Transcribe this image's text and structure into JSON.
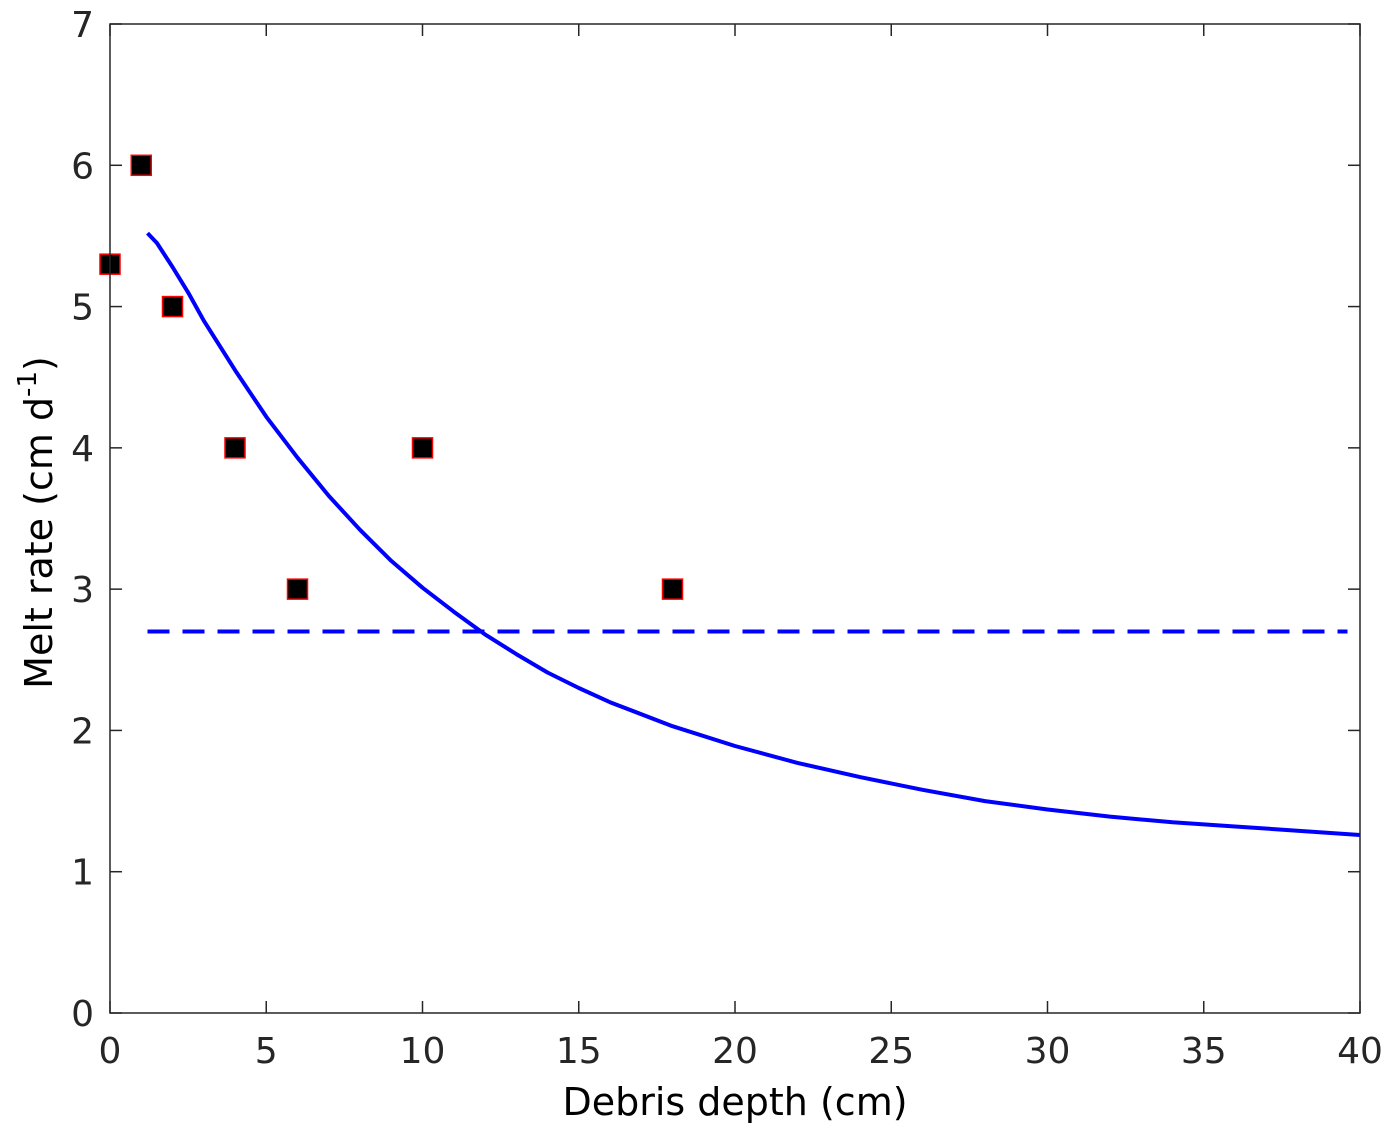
{
  "chart_data": {
    "type": "scatter",
    "xlabel": "Debris depth (cm)",
    "ylabel": "Melt rate (cm d",
    "ylabel_superscript": "-1",
    "ylabel_close": ")",
    "xlim": [
      0,
      40
    ],
    "ylim": [
      0,
      7
    ],
    "xticks": [
      0,
      5,
      10,
      15,
      20,
      25,
      30,
      35,
      40
    ],
    "yticks": [
      0,
      1,
      2,
      3,
      4,
      5,
      6,
      7
    ],
    "grid": false,
    "legend": "none",
    "colors": {
      "curve": "#0000ff",
      "marker_fill": "#000000",
      "marker_edge": "#ff0000",
      "axis": "#262626"
    },
    "series": [
      {
        "kind": "markers",
        "marker": "square",
        "points": [
          {
            "x": 0,
            "y": 5.3
          },
          {
            "x": 1,
            "y": 6
          },
          {
            "x": 2,
            "y": 5
          },
          {
            "x": 4,
            "y": 4
          },
          {
            "x": 6,
            "y": 3
          },
          {
            "x": 10,
            "y": 4
          },
          {
            "x": 18,
            "y": 3
          }
        ]
      },
      {
        "kind": "line",
        "style": "solid",
        "x": [
          1.2,
          1.5,
          2,
          2.5,
          3,
          4,
          5,
          6,
          7,
          8,
          9,
          10,
          11,
          12,
          13,
          14,
          15,
          16,
          18,
          20,
          22,
          24,
          26,
          28,
          30,
          32,
          34,
          36,
          38,
          40
        ],
        "y": [
          5.52,
          5.45,
          5.28,
          5.1,
          4.9,
          4.55,
          4.22,
          3.93,
          3.66,
          3.42,
          3.2,
          3.01,
          2.84,
          2.68,
          2.54,
          2.41,
          2.3,
          2.2,
          2.03,
          1.89,
          1.77,
          1.67,
          1.58,
          1.5,
          1.44,
          1.39,
          1.35,
          1.32,
          1.29,
          1.26
        ]
      },
      {
        "kind": "line",
        "style": "dashed",
        "x": [
          1.2,
          39.6
        ],
        "y": [
          2.7,
          2.7
        ]
      }
    ]
  }
}
